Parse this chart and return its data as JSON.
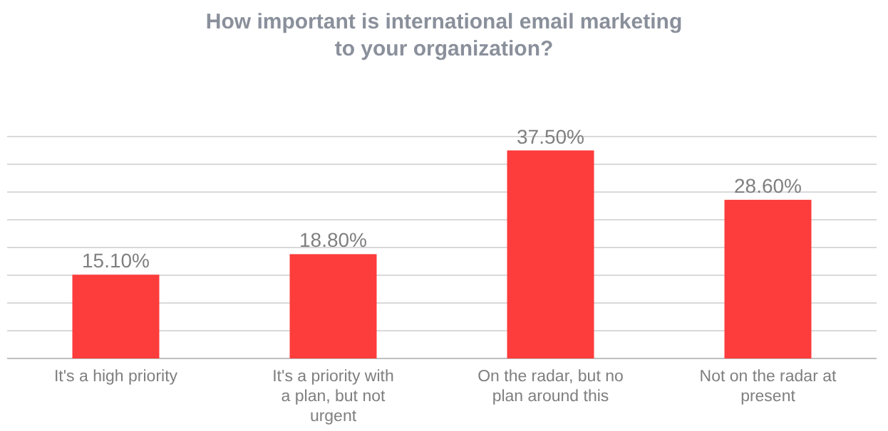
{
  "chart_data": {
    "type": "bar",
    "title": "How important is international email marketing\nto your organization?",
    "categories": [
      "It's a high priority",
      "It's a priority with a plan, but not urgent",
      "On the radar, but no plan around this",
      "Not on the radar at present"
    ],
    "values": [
      15.1,
      18.8,
      37.5,
      28.6
    ],
    "value_labels": [
      "15.10%",
      "18.80%",
      "37.50%",
      "28.60%"
    ],
    "color": "#fd3c3c",
    "ylim": [
      0,
      40
    ],
    "yticks": [
      {
        "value": 0,
        "label": null
      },
      {
        "value": 5,
        "label": null
      },
      {
        "value": 10,
        "label": null
      },
      {
        "value": 15,
        "label": null
      },
      {
        "value": 20,
        "label": null
      },
      {
        "value": 25,
        "label": null
      },
      {
        "value": 30,
        "label": null
      },
      {
        "value": 35,
        "label": null
      },
      {
        "value": 40,
        "label": null
      }
    ],
    "grid": "y",
    "tick_labels": "x"
  }
}
